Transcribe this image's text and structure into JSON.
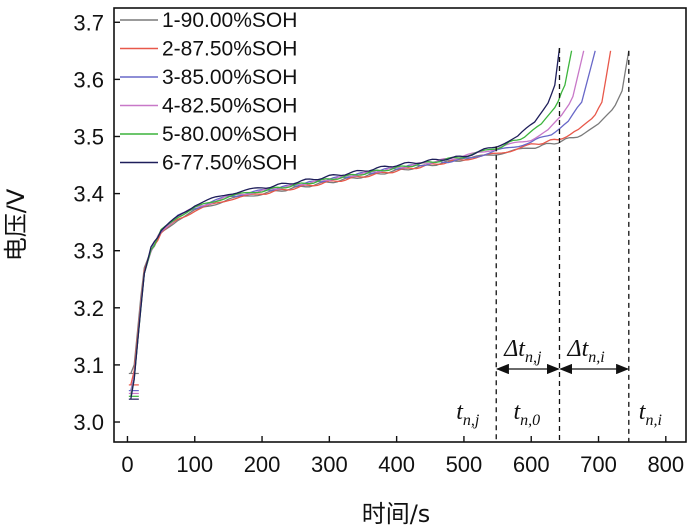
{
  "chart_data": {
    "type": "line",
    "xlabel": "时间/s",
    "ylabel": "电压/V",
    "xlim": [
      -20,
      830
    ],
    "ylim": [
      2.965,
      3.725
    ],
    "xticks": [
      0,
      100,
      200,
      300,
      400,
      500,
      600,
      700,
      800
    ],
    "yticks": [
      3.0,
      3.1,
      3.2,
      3.3,
      3.4,
      3.5,
      3.6,
      3.7
    ],
    "xtick_labels": [
      "0",
      "100",
      "200",
      "300",
      "400",
      "500",
      "600",
      "700",
      "800"
    ],
    "ytick_labels": [
      "3.0",
      "3.1",
      "3.2",
      "3.3",
      "3.4",
      "3.5",
      "3.6",
      "3.7"
    ],
    "legend_position": "top-left",
    "series": [
      {
        "name": "1-90.00%SOH",
        "color": "#7a7a7a",
        "start_y": 3.085,
        "end_x": 745,
        "points": [
          [
            5,
            3.085
          ],
          [
            10,
            3.1
          ],
          [
            15,
            3.16
          ],
          [
            20,
            3.22
          ],
          [
            25,
            3.27
          ],
          [
            35,
            3.3
          ],
          [
            50,
            3.33
          ],
          [
            75,
            3.355
          ],
          [
            100,
            3.37
          ],
          [
            150,
            3.39
          ],
          [
            200,
            3.4
          ],
          [
            300,
            3.42
          ],
          [
            400,
            3.44
          ],
          [
            500,
            3.46
          ],
          [
            550,
            3.47
          ],
          [
            600,
            3.48
          ],
          [
            640,
            3.49
          ],
          [
            680,
            3.505
          ],
          [
            700,
            3.52
          ],
          [
            720,
            3.545
          ],
          [
            735,
            3.58
          ],
          [
            745,
            3.65
          ]
        ]
      },
      {
        "name": "2-87.50%SOH",
        "color": "#e8584a",
        "start_y": 3.065,
        "end_x": 718,
        "points": [
          [
            5,
            3.065
          ],
          [
            10,
            3.09
          ],
          [
            15,
            3.15
          ],
          [
            20,
            3.21
          ],
          [
            25,
            3.265
          ],
          [
            35,
            3.3
          ],
          [
            50,
            3.33
          ],
          [
            75,
            3.355
          ],
          [
            100,
            3.37
          ],
          [
            150,
            3.39
          ],
          [
            200,
            3.4
          ],
          [
            300,
            3.42
          ],
          [
            400,
            3.44
          ],
          [
            500,
            3.46
          ],
          [
            550,
            3.47
          ],
          [
            600,
            3.485
          ],
          [
            640,
            3.495
          ],
          [
            670,
            3.51
          ],
          [
            690,
            3.53
          ],
          [
            705,
            3.56
          ],
          [
            718,
            3.65
          ]
        ]
      },
      {
        "name": "3-85.00%SOH",
        "color": "#6868c8",
        "start_y": 3.055,
        "end_x": 695,
        "points": [
          [
            5,
            3.055
          ],
          [
            10,
            3.08
          ],
          [
            15,
            3.14
          ],
          [
            20,
            3.205
          ],
          [
            25,
            3.26
          ],
          [
            35,
            3.3
          ],
          [
            50,
            3.335
          ],
          [
            75,
            3.36
          ],
          [
            100,
            3.375
          ],
          [
            150,
            3.395
          ],
          [
            200,
            3.405
          ],
          [
            300,
            3.425
          ],
          [
            400,
            3.445
          ],
          [
            500,
            3.46
          ],
          [
            550,
            3.475
          ],
          [
            600,
            3.49
          ],
          [
            630,
            3.505
          ],
          [
            655,
            3.525
          ],
          [
            675,
            3.56
          ],
          [
            695,
            3.65
          ]
        ]
      },
      {
        "name": "4-82.50%SOH",
        "color": "#c878c8",
        "start_y": 3.05,
        "end_x": 678,
        "points": [
          [
            5,
            3.05
          ],
          [
            10,
            3.08
          ],
          [
            15,
            3.14
          ],
          [
            20,
            3.205
          ],
          [
            25,
            3.26
          ],
          [
            35,
            3.3
          ],
          [
            50,
            3.335
          ],
          [
            75,
            3.36
          ],
          [
            100,
            3.375
          ],
          [
            150,
            3.395
          ],
          [
            200,
            3.405
          ],
          [
            300,
            3.425
          ],
          [
            400,
            3.445
          ],
          [
            500,
            3.465
          ],
          [
            550,
            3.48
          ],
          [
            600,
            3.495
          ],
          [
            625,
            3.51
          ],
          [
            645,
            3.535
          ],
          [
            662,
            3.57
          ],
          [
            678,
            3.65
          ]
        ]
      },
      {
        "name": "5-80.00%SOH",
        "color": "#3cb43c",
        "start_y": 3.045,
        "end_x": 660,
        "points": [
          [
            5,
            3.045
          ],
          [
            10,
            3.075
          ],
          [
            15,
            3.14
          ],
          [
            20,
            3.2
          ],
          [
            25,
            3.26
          ],
          [
            35,
            3.3
          ],
          [
            50,
            3.335
          ],
          [
            75,
            3.36
          ],
          [
            100,
            3.375
          ],
          [
            150,
            3.395
          ],
          [
            200,
            3.405
          ],
          [
            300,
            3.425
          ],
          [
            400,
            3.445
          ],
          [
            500,
            3.465
          ],
          [
            550,
            3.48
          ],
          [
            590,
            3.5
          ],
          [
            615,
            3.52
          ],
          [
            635,
            3.55
          ],
          [
            650,
            3.59
          ],
          [
            660,
            3.65
          ]
        ]
      },
      {
        "name": "6-77.50%SOH",
        "color": "#1e1e5a",
        "start_y": 3.04,
        "end_x": 642,
        "points": [
          [
            5,
            3.04
          ],
          [
            10,
            3.075
          ],
          [
            15,
            3.14
          ],
          [
            20,
            3.2
          ],
          [
            25,
            3.26
          ],
          [
            35,
            3.305
          ],
          [
            50,
            3.335
          ],
          [
            75,
            3.36
          ],
          [
            100,
            3.38
          ],
          [
            150,
            3.4
          ],
          [
            200,
            3.41
          ],
          [
            300,
            3.43
          ],
          [
            400,
            3.45
          ],
          [
            500,
            3.465
          ],
          [
            548,
            3.483
          ],
          [
            580,
            3.5
          ],
          [
            605,
            3.525
          ],
          [
            625,
            3.56
          ],
          [
            635,
            3.59
          ],
          [
            642,
            3.655
          ]
        ]
      }
    ],
    "annotations": {
      "vlines": [
        {
          "x": 548,
          "label": "t",
          "sub": "n,j"
        },
        {
          "x": 642,
          "label": "t",
          "sub": "n,0"
        },
        {
          "x": 745,
          "label": "t",
          "sub": "n,i"
        }
      ],
      "deltas": [
        {
          "from": 548,
          "to": 642,
          "label": "Δt",
          "sub": "n,j"
        },
        {
          "from": 642,
          "to": 745,
          "label": "Δt",
          "sub": "n,i"
        }
      ]
    }
  }
}
